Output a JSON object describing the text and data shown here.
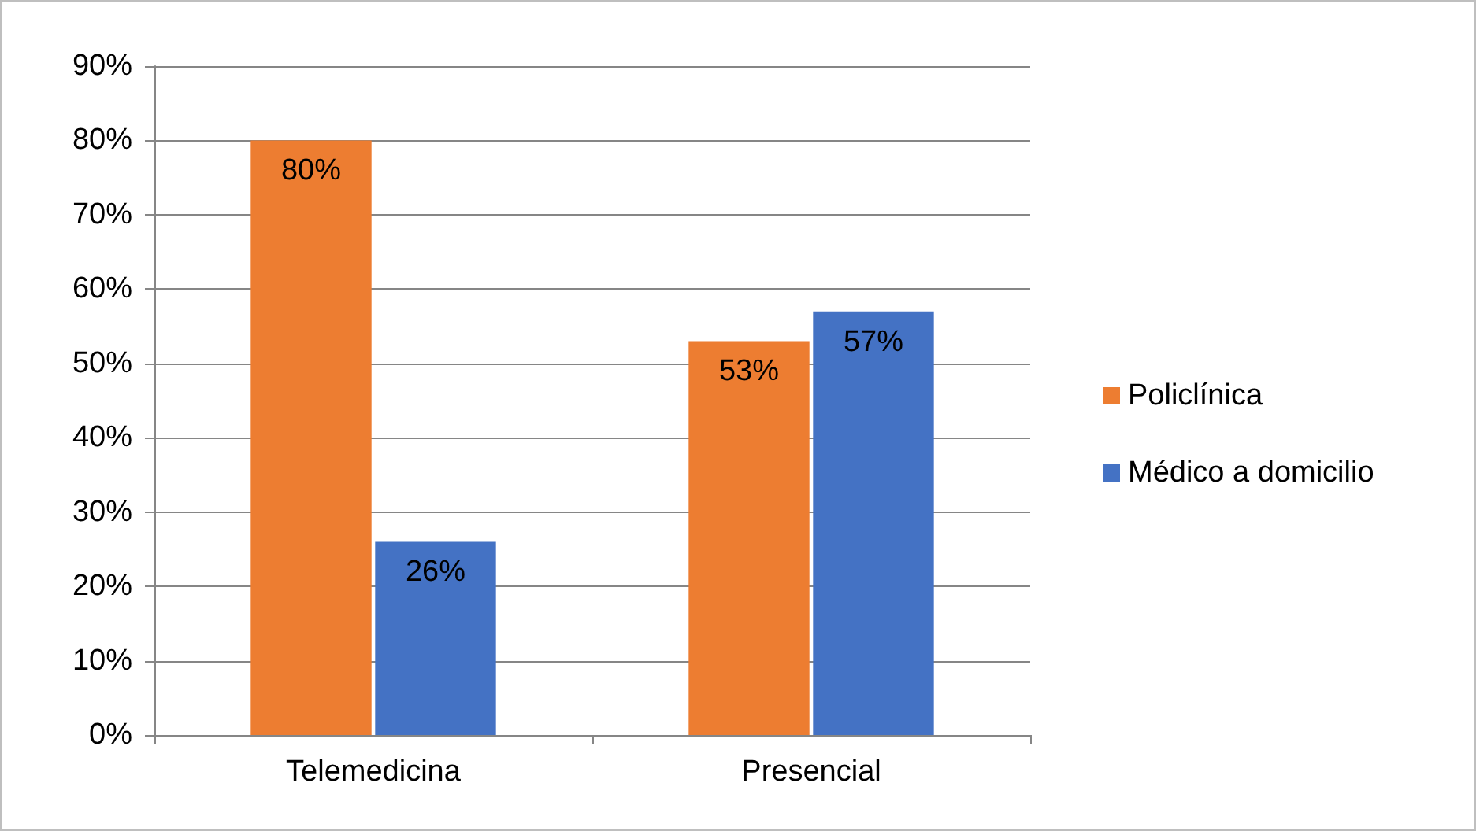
{
  "chart_data": {
    "type": "bar",
    "categories": [
      "Telemedicina",
      "Presencial"
    ],
    "series": [
      {
        "name": "Policlínica",
        "color": "#ed7d31",
        "values": [
          80,
          53
        ],
        "value_labels": [
          "80%",
          "53%"
        ]
      },
      {
        "name": "Médico a domicilio",
        "color": "#4472c4",
        "values": [
          26,
          57
        ],
        "value_labels": [
          "26%",
          "57%"
        ]
      }
    ],
    "ylim": [
      0,
      90
    ],
    "yticks": [
      {
        "value": 0,
        "label": "0%"
      },
      {
        "value": 10,
        "label": "10%"
      },
      {
        "value": 20,
        "label": "20%"
      },
      {
        "value": 30,
        "label": "30%"
      },
      {
        "value": 40,
        "label": "40%"
      },
      {
        "value": 50,
        "label": "50%"
      },
      {
        "value": 60,
        "label": "60%"
      },
      {
        "value": 70,
        "label": "70%"
      },
      {
        "value": 80,
        "label": "80%"
      },
      {
        "value": 90,
        "label": "90%"
      }
    ],
    "grid": "y",
    "legend": "right"
  }
}
